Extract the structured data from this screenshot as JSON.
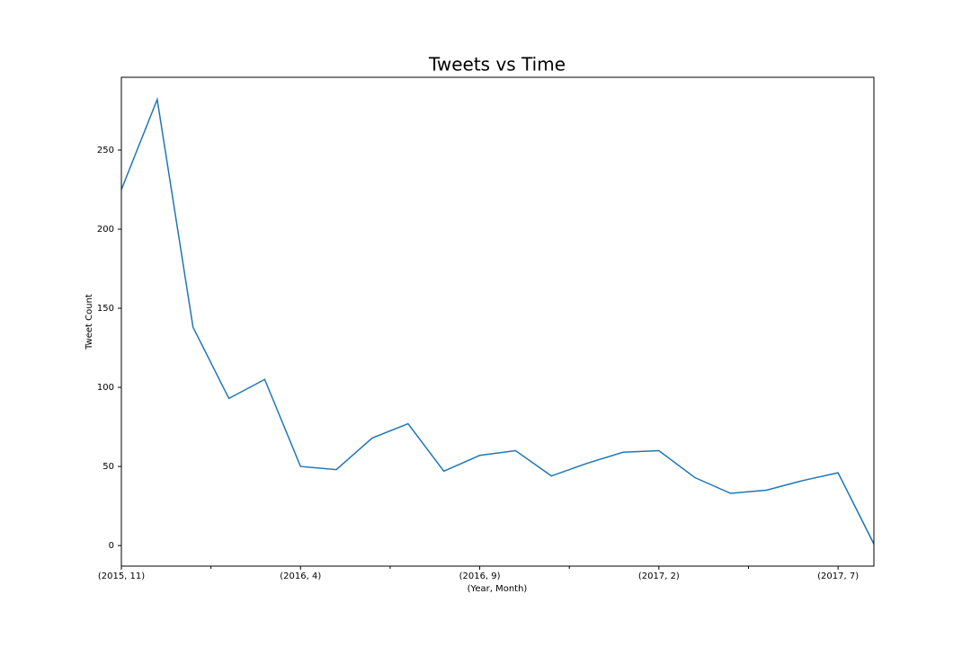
{
  "chart_data": {
    "type": "line",
    "title": "Tweets vs Time",
    "xlabel": "(Year, Month)",
    "ylabel": "Tweet Count",
    "categories": [
      "(2015, 11)",
      null,
      null,
      null,
      null,
      "(2016, 4)",
      null,
      null,
      null,
      null,
      "(2016, 9)",
      null,
      null,
      null,
      null,
      "(2017, 2)",
      null,
      null,
      null,
      null,
      "(2017, 7)",
      null
    ],
    "values": [
      225,
      282,
      138,
      93,
      105,
      50,
      48,
      68,
      77,
      47,
      57,
      60,
      44,
      52,
      59,
      60,
      43,
      33,
      35,
      41,
      46,
      1
    ],
    "color": "#1f77b4",
    "ylim": [
      -13,
      296
    ],
    "yticks": [
      0,
      50,
      100,
      150,
      200,
      250
    ],
    "grid": false
  }
}
